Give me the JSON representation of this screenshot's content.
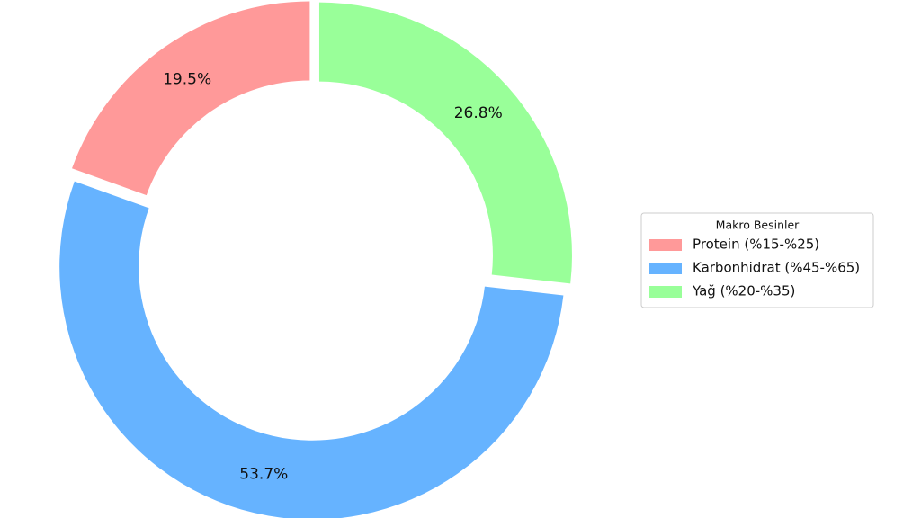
{
  "chart_data": {
    "type": "pie",
    "categories": [
      "Protein (%15-%25)",
      "Karbonhidrat (%45-%65)",
      "Yağ (%20-%35)"
    ],
    "values": [
      19.5,
      53.7,
      26.8
    ],
    "value_labels": [
      "19.5%",
      "53.7%",
      "26.8%"
    ],
    "colors": [
      "#ff9999",
      "#66b3ff",
      "#99ff99"
    ],
    "legend_title": "Makro Besinler",
    "legend": "right"
  }
}
